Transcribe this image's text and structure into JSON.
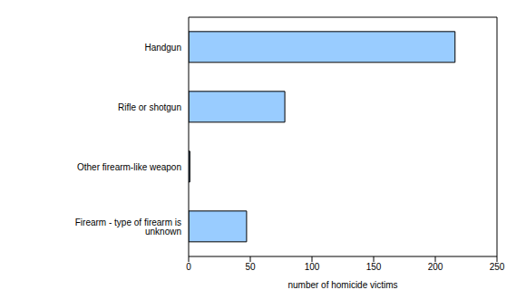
{
  "chart_data": {
    "type": "bar",
    "orientation": "horizontal",
    "categories": [
      "Handgun",
      "Rifle or shotgun",
      "Other firearm-like weapon",
      "Firearm - type of firearm is unknown"
    ],
    "values": [
      216,
      78,
      1,
      47
    ],
    "color": "#99ccff",
    "xlabel": "number of homicide victims",
    "xlim": [
      0,
      250
    ],
    "xticks": [
      0,
      50,
      100,
      150,
      200,
      250
    ],
    "grid": false
  }
}
